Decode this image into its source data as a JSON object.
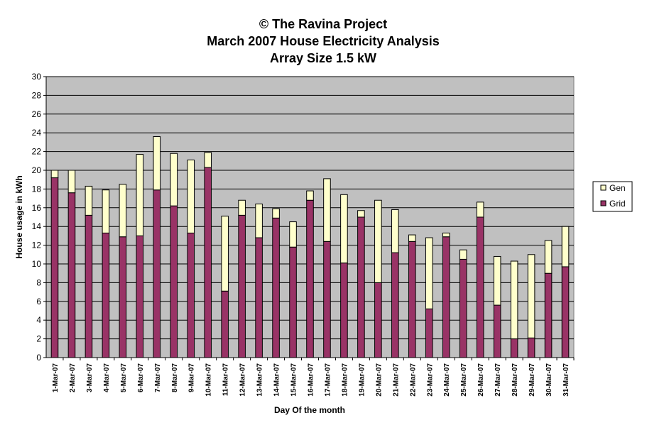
{
  "chart_data": {
    "type": "bar",
    "stacked": true,
    "title": [
      "© The Ravina Project",
      "March 2007 House Electricity Analysis",
      "Array Size 1.5 kW"
    ],
    "xlabel": "Day Of the month",
    "ylabel": "House usage in kWh",
    "ylim": [
      0,
      30
    ],
    "ytick_step": 2,
    "grid": true,
    "legend_position": "right",
    "categories": [
      "1-Mar-07",
      "2-Mar-07",
      "3-Mar-07",
      "4-Mar-07",
      "5-Mar-07",
      "6-Mar-07",
      "7-Mar-07",
      "8-Mar-07",
      "9-Mar-07",
      "10-Mar-07",
      "11-Mar-07",
      "12-Mar-07",
      "13-Mar-07",
      "14-Mar-07",
      "15-Mar-07",
      "16-Mar-07",
      "17-Mar-07",
      "18-Mar-07",
      "19-Mar-07",
      "20-Mar-07",
      "21-Mar-07",
      "22-Mar-07",
      "23-Mar-07",
      "24-Mar-07",
      "25-Mar-07",
      "26-Mar-07",
      "27-Mar-07",
      "28-Mar-07",
      "29-Mar-07",
      "30-Mar-07",
      "31-Mar-07"
    ],
    "series": [
      {
        "name": "Grid",
        "color": "#993366",
        "values": [
          19.2,
          17.6,
          15.2,
          13.3,
          12.9,
          13.0,
          17.9,
          16.2,
          13.3,
          20.3,
          7.1,
          15.2,
          12.8,
          14.9,
          11.8,
          16.8,
          12.4,
          10.1,
          15.0,
          8.0,
          11.2,
          12.4,
          5.2,
          12.9,
          10.5,
          15.0,
          5.6,
          2.0,
          2.1,
          9.0,
          9.7
        ]
      },
      {
        "name": "Gen",
        "color": "#ffffcc",
        "values": [
          0.8,
          2.4,
          3.1,
          4.6,
          5.6,
          8.7,
          5.7,
          5.6,
          7.8,
          1.6,
          8.0,
          1.6,
          3.6,
          1.0,
          2.7,
          1.0,
          6.7,
          7.3,
          0.7,
          8.8,
          4.6,
          0.7,
          7.6,
          0.4,
          1.0,
          1.6,
          5.2,
          8.3,
          8.9,
          3.5,
          4.3
        ]
      }
    ]
  }
}
